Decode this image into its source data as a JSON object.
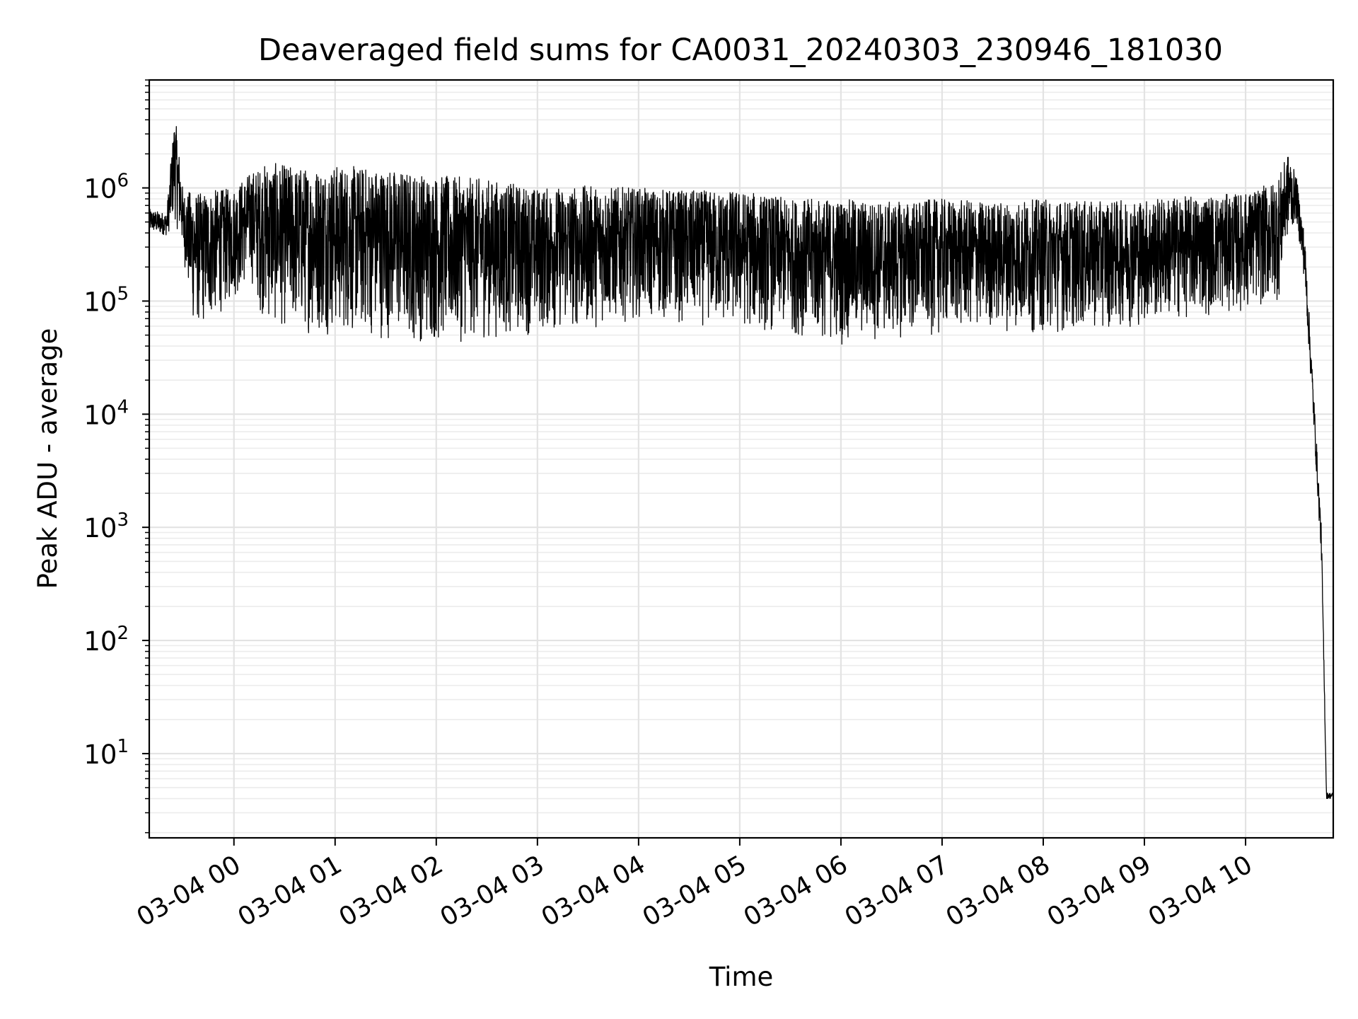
{
  "chart_data": {
    "type": "line",
    "title": "Deaveraged field sums for CA0031_20240303_230946_181030",
    "xlabel": "Time",
    "ylabel": "Peak ADU - average",
    "yscale": "log",
    "xlim": [
      "2024-03-03 23:09:46",
      "2024-03-04 10:52:00"
    ],
    "ylim": [
      1.8,
      9000000
    ],
    "grid": "major and minor on both axes",
    "x_ticks": [
      "03-04 00",
      "03-04 01",
      "03-04 02",
      "03-04 03",
      "03-04 04",
      "03-04 05",
      "03-04 06",
      "03-04 07",
      "03-04 08",
      "03-04 09",
      "03-04 10"
    ],
    "y_ticks": [
      {
        "base": "10",
        "exp": "1",
        "value": 10
      },
      {
        "base": "10",
        "exp": "2",
        "value": 100
      },
      {
        "base": "10",
        "exp": "3",
        "value": 1000
      },
      {
        "base": "10",
        "exp": "4",
        "value": 10000
      },
      {
        "base": "10",
        "exp": "5",
        "value": 100000
      },
      {
        "base": "10",
        "exp": "6",
        "value": 1000000
      }
    ],
    "line_color": "#000000",
    "series": [
      {
        "x": [
          "2024-03-03 23:09:46",
          "2024-03-03 23:15:00",
          "2024-03-03 23:20:00",
          "2024-03-03 23:25:00",
          "2024-03-03 23:30:00",
          "2024-03-03 23:35:00",
          "2024-03-03 23:40:00",
          "2024-03-03 23:45:00",
          "2024-03-04 00:00:00",
          "2024-03-04 00:10:00",
          "2024-03-04 00:15:00",
          "2024-03-04 00:20:00",
          "2024-03-04 00:30:00",
          "2024-03-04 00:45:00",
          "2024-03-04 01:00:00",
          "2024-03-04 01:30:00",
          "2024-03-04 02:00:00",
          "2024-03-04 02:30:00",
          "2024-03-04 03:00:00",
          "2024-03-04 03:30:00",
          "2024-03-04 04:00:00",
          "2024-03-04 04:30:00",
          "2024-03-04 05:00:00",
          "2024-03-04 05:30:00",
          "2024-03-04 06:00:00",
          "2024-03-04 06:30:00",
          "2024-03-04 07:00:00",
          "2024-03-04 07:30:00",
          "2024-03-04 08:00:00",
          "2024-03-04 08:30:00",
          "2024-03-04 09:00:00",
          "2024-03-04 09:30:00",
          "2024-03-04 10:00:00",
          "2024-03-04 10:15:00",
          "2024-03-04 10:20:00",
          "2024-03-04 10:25:00",
          "2024-03-04 10:30:00",
          "2024-03-04 10:35:00",
          "2024-03-04 10:40:00",
          "2024-03-04 10:45:00",
          "2024-03-04 10:48:00",
          "2024-03-04 10:50:00",
          "2024-03-04 10:52:00"
        ],
        "y_low": [
          420000,
          400000,
          380000,
          500000,
          250000,
          60000,
          55000,
          60000,
          100000,
          150000,
          80000,
          60000,
          55000,
          50000,
          50000,
          45000,
          40000,
          45000,
          50000,
          55000,
          70000,
          60000,
          55000,
          50000,
          40000,
          45000,
          50000,
          55000,
          50000,
          55000,
          60000,
          70000,
          80000,
          90000,
          100000,
          350000,
          550000,
          150000,
          10000,
          500,
          4,
          4,
          4
        ],
        "y_high": [
          650000,
          620000,
          600000,
          4600000,
          900000,
          950000,
          900000,
          950000,
          1000000,
          1400000,
          1500000,
          1700000,
          1600000,
          1500000,
          1600000,
          1500000,
          1300000,
          1200000,
          1000000,
          1050000,
          1000000,
          950000,
          950000,
          800000,
          800000,
          750000,
          800000,
          750000,
          800000,
          750000,
          800000,
          850000,
          900000,
          1100000,
          1300000,
          2000000,
          1300000,
          400000,
          20000,
          1000,
          4.5,
          4.5,
          4.5
        ]
      }
    ]
  }
}
